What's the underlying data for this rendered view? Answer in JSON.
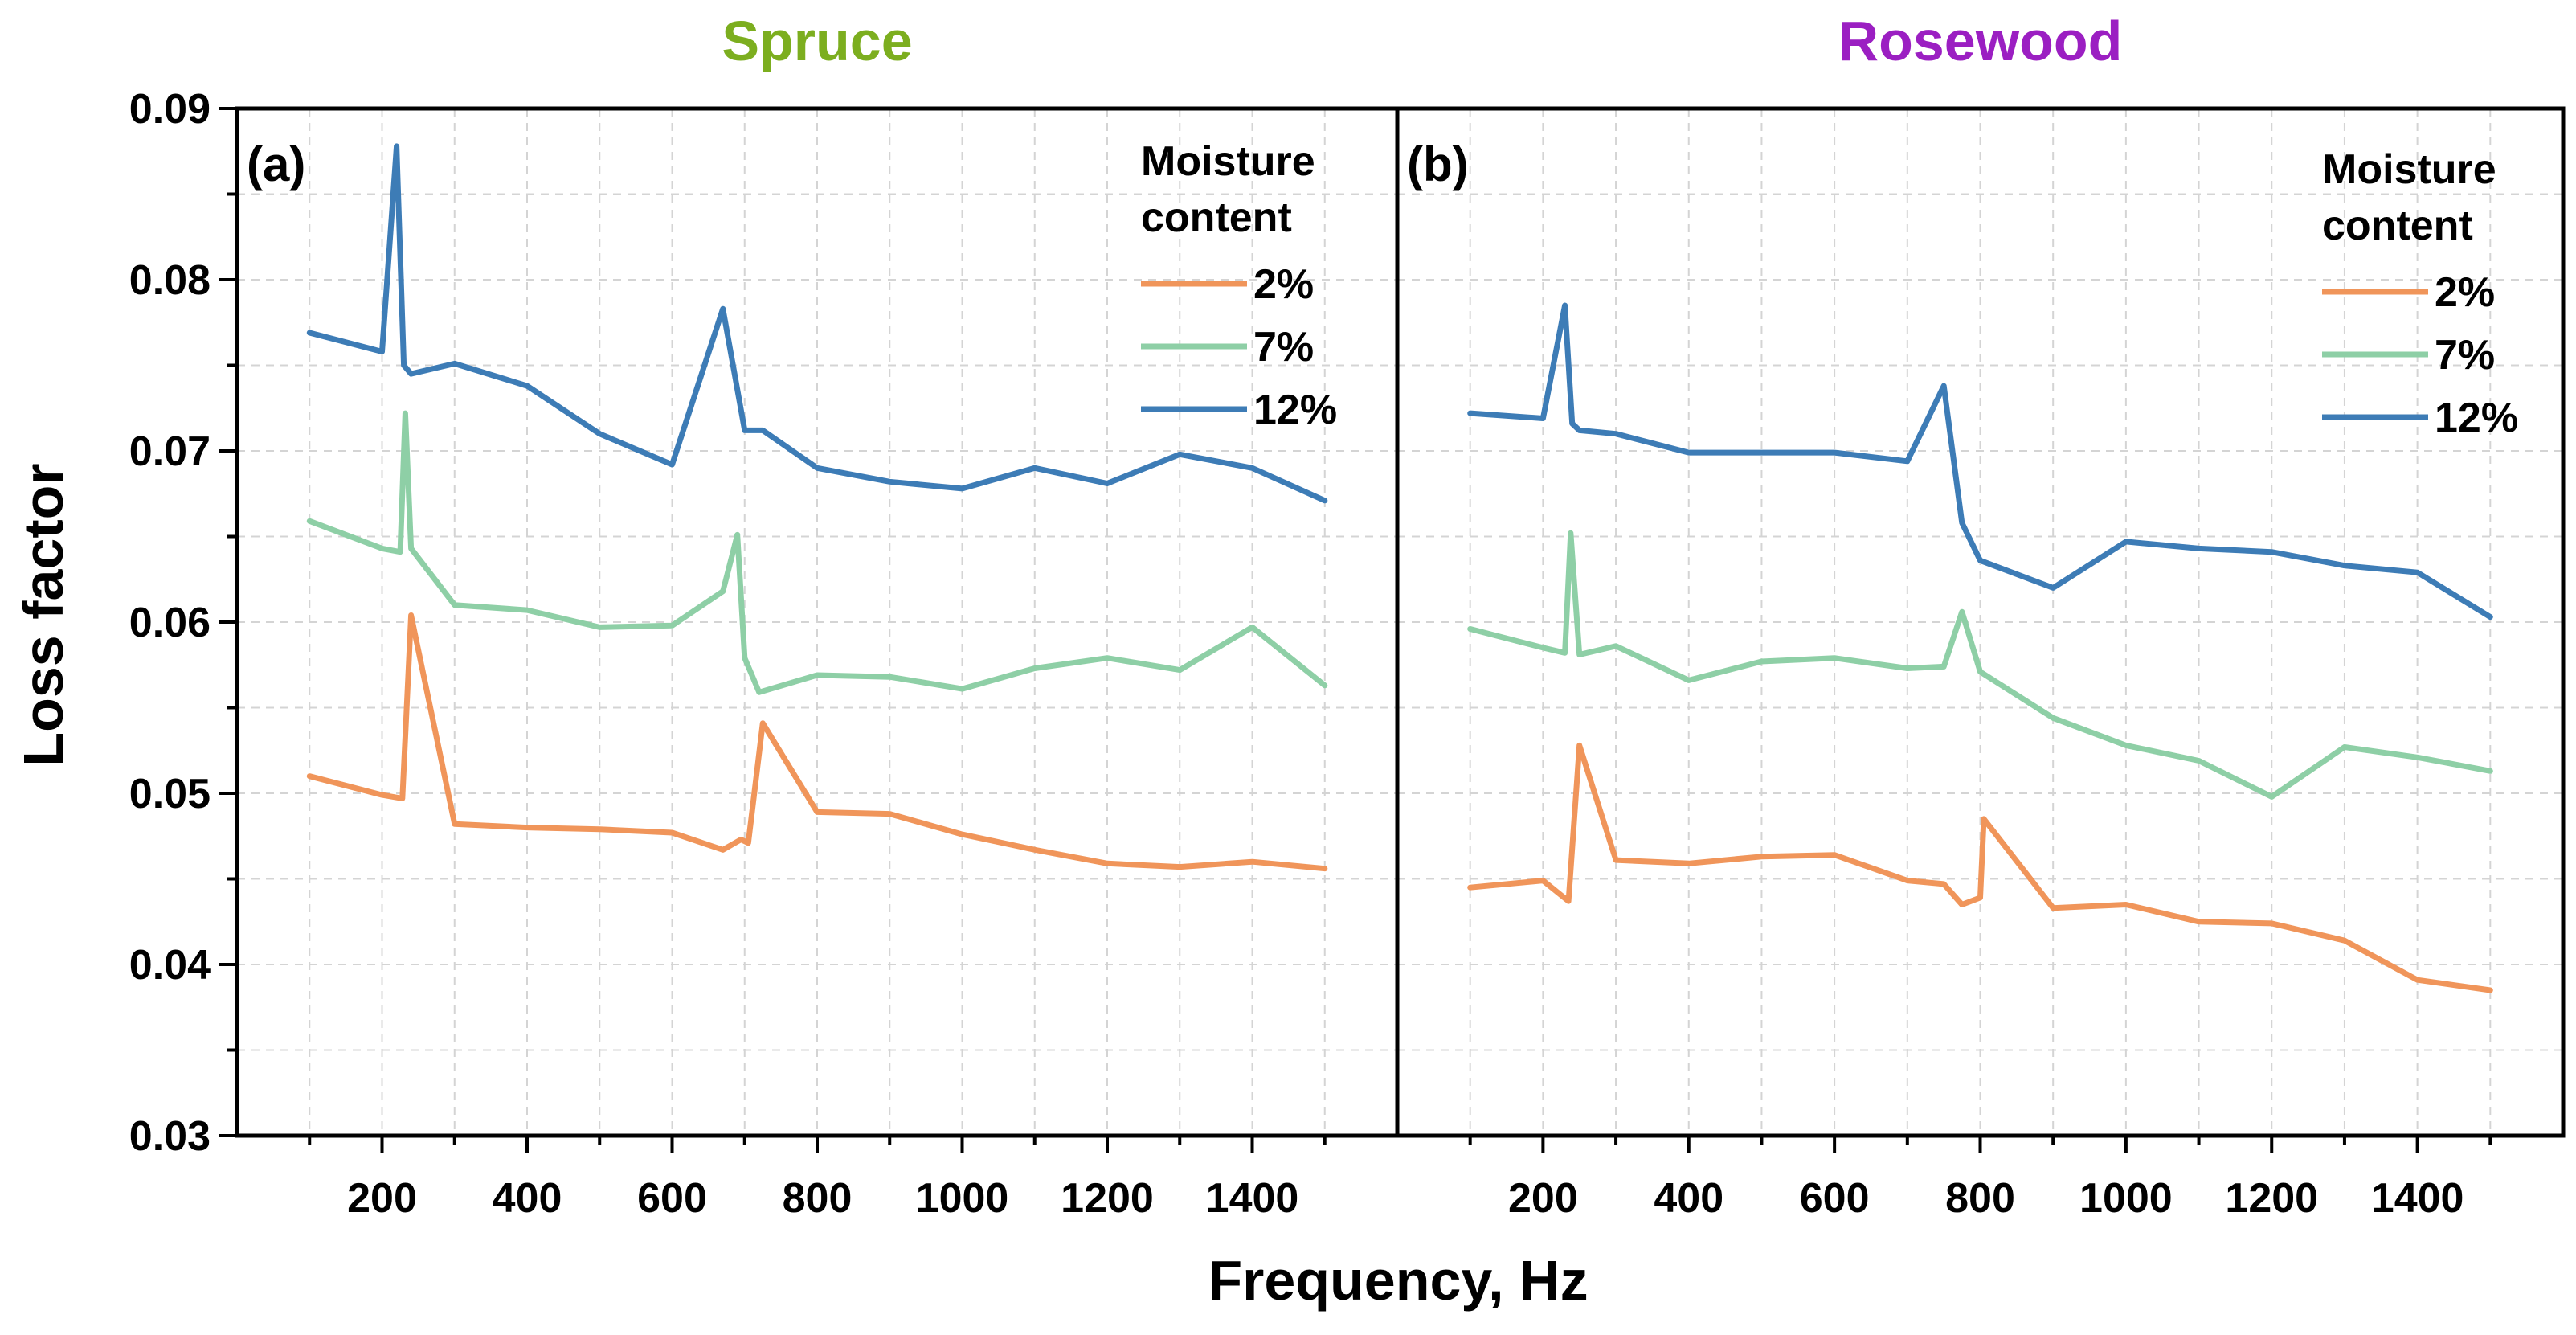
{
  "x_axis_label": "Frequency, Hz",
  "y_axis_label": "Loss factor",
  "chart_data": [
    {
      "type": "line",
      "title": "Spruce",
      "title_color": "#7cae1f",
      "panel_label": "(a)",
      "legend_title_line1": "Moisture",
      "legend_title_line2": "content",
      "legend_position": "top-right",
      "xlabel": "Frequency, Hz",
      "ylabel": "Loss factor",
      "xlim": [
        0,
        1600
      ],
      "ylim": [
        0.03,
        0.09
      ],
      "x_ticks": [
        200,
        400,
        600,
        800,
        1000,
        1200,
        1400
      ],
      "x_tick_labels": [
        "200",
        "400",
        "600",
        "800",
        "1000",
        "1200",
        "1400"
      ],
      "y_ticks": [
        0.03,
        0.04,
        0.05,
        0.06,
        0.07,
        0.08,
        0.09
      ],
      "y_tick_labels": [
        "0.03",
        "0.04",
        "0.05",
        "0.06",
        "0.07",
        "0.08",
        "0.09"
      ],
      "grid": true,
      "series": [
        {
          "name": "2%",
          "color": "#f0955a",
          "x": [
            100,
            200,
            228,
            240,
            300,
            400,
            500,
            600,
            670,
            695,
            705,
            725,
            800,
            900,
            1000,
            1100,
            1200,
            1300,
            1400,
            1500
          ],
          "y": [
            0.051,
            0.0499,
            0.0497,
            0.0604,
            0.0482,
            0.048,
            0.0479,
            0.0477,
            0.0467,
            0.0473,
            0.0471,
            0.0541,
            0.0489,
            0.0488,
            0.0476,
            0.0467,
            0.0459,
            0.0457,
            0.046,
            0.0456
          ]
        },
        {
          "name": "7%",
          "color": "#8ecfa6",
          "x": [
            100,
            200,
            225,
            232,
            240,
            300,
            400,
            500,
            600,
            670,
            690,
            700,
            720,
            800,
            900,
            1000,
            1100,
            1200,
            1300,
            1400,
            1500
          ],
          "y": [
            0.0659,
            0.0643,
            0.0641,
            0.0722,
            0.0643,
            0.061,
            0.0607,
            0.0597,
            0.0598,
            0.0618,
            0.0651,
            0.0579,
            0.0559,
            0.0569,
            0.0568,
            0.0561,
            0.0573,
            0.0579,
            0.0572,
            0.0597,
            0.0563
          ]
        },
        {
          "name": "12%",
          "color": "#3d7cb6",
          "x": [
            100,
            200,
            220,
            230,
            240,
            300,
            400,
            500,
            600,
            670,
            700,
            725,
            800,
            900,
            1000,
            1100,
            1200,
            1300,
            1400,
            1500
          ],
          "y": [
            0.0769,
            0.0758,
            0.0878,
            0.075,
            0.0745,
            0.0751,
            0.0738,
            0.071,
            0.0692,
            0.0783,
            0.0712,
            0.0712,
            0.069,
            0.0682,
            0.0678,
            0.069,
            0.0681,
            0.0698,
            0.069,
            0.0671
          ]
        }
      ]
    },
    {
      "type": "line",
      "title": "Rosewood",
      "title_color": "#9b1fc2",
      "panel_label": "(b)",
      "legend_title_line1": "Moisture",
      "legend_title_line2": "content",
      "legend_position": "top-right",
      "xlabel": "Frequency, Hz",
      "ylabel": "Loss factor",
      "xlim": [
        0,
        1600
      ],
      "ylim": [
        0.03,
        0.09
      ],
      "x_ticks": [
        200,
        400,
        600,
        800,
        1000,
        1200,
        1400
      ],
      "x_tick_labels": [
        "200",
        "400",
        "600",
        "800",
        "1000",
        "1200",
        "1400"
      ],
      "y_ticks": [
        0.03,
        0.04,
        0.05,
        0.06,
        0.07,
        0.08,
        0.09
      ],
      "y_tick_labels": [
        "0.03",
        "0.04",
        "0.05",
        "0.06",
        "0.07",
        "0.08",
        "0.09"
      ],
      "grid": true,
      "series": [
        {
          "name": "2%",
          "color": "#f0955a",
          "x": [
            100,
            200,
            235,
            250,
            300,
            400,
            500,
            600,
            700,
            750,
            775,
            800,
            805,
            900,
            1000,
            1100,
            1200,
            1300,
            1400,
            1500
          ],
          "y": [
            0.0445,
            0.0449,
            0.0437,
            0.0528,
            0.0461,
            0.0459,
            0.0463,
            0.0464,
            0.0449,
            0.0447,
            0.0435,
            0.0439,
            0.0485,
            0.0433,
            0.0435,
            0.0425,
            0.0424,
            0.0414,
            0.0391,
            0.0385
          ]
        },
        {
          "name": "7%",
          "color": "#8ecfa6",
          "x": [
            100,
            200,
            230,
            238,
            250,
            300,
            400,
            500,
            600,
            700,
            750,
            775,
            800,
            900,
            1000,
            1100,
            1200,
            1300,
            1400,
            1500
          ],
          "y": [
            0.0596,
            0.0585,
            0.0582,
            0.0652,
            0.0581,
            0.0586,
            0.0566,
            0.0577,
            0.0579,
            0.0573,
            0.0574,
            0.0606,
            0.0571,
            0.0544,
            0.0528,
            0.0519,
            0.0498,
            0.0527,
            0.0521,
            0.0513
          ]
        },
        {
          "name": "12%",
          "color": "#3d7cb6",
          "x": [
            100,
            200,
            230,
            240,
            250,
            300,
            400,
            500,
            600,
            700,
            750,
            775,
            800,
            900,
            1000,
            1100,
            1200,
            1300,
            1400,
            1500
          ],
          "y": [
            0.0722,
            0.0719,
            0.0785,
            0.0716,
            0.0712,
            0.071,
            0.0699,
            0.0699,
            0.0699,
            0.0694,
            0.0738,
            0.0658,
            0.0636,
            0.062,
            0.0647,
            0.0643,
            0.0641,
            0.0633,
            0.0629,
            0.0603
          ]
        }
      ]
    }
  ]
}
